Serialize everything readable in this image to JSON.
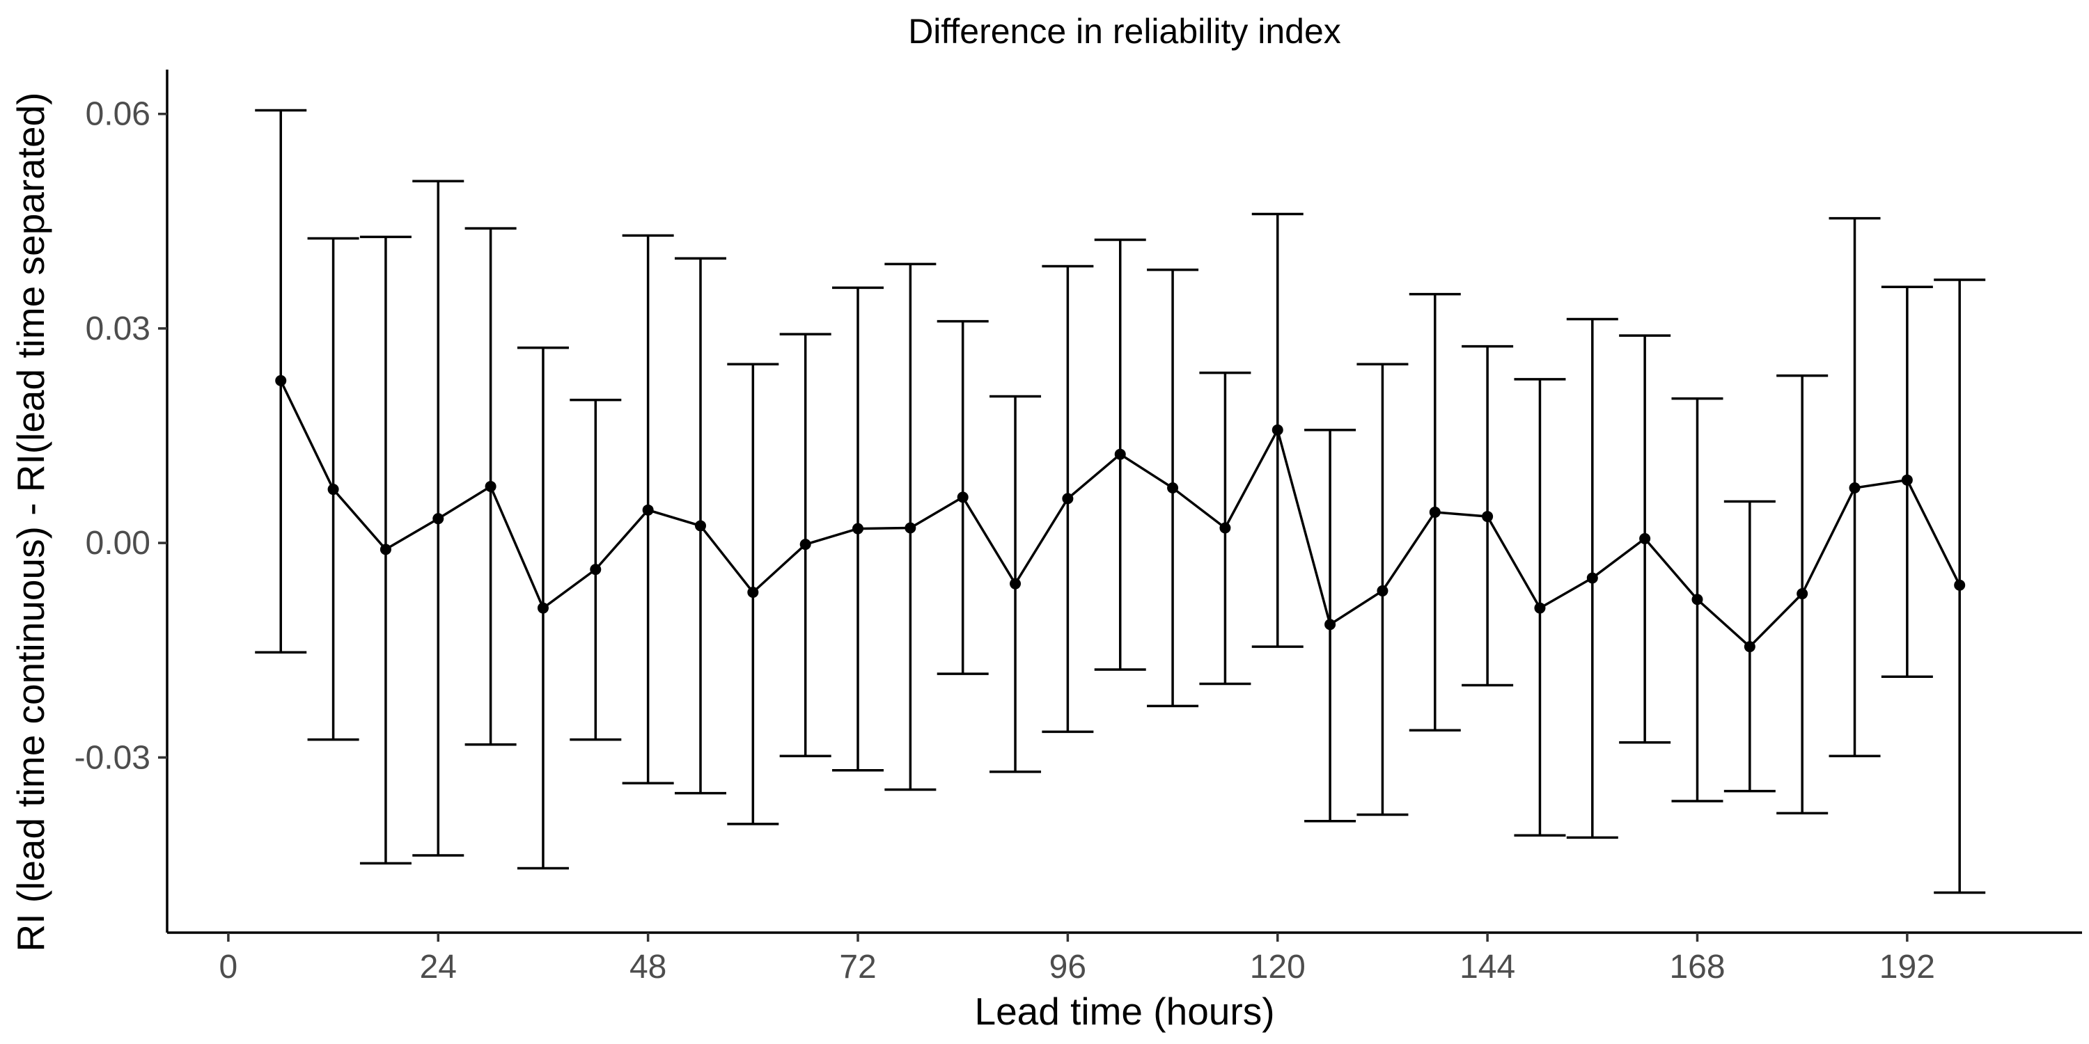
{
  "chart_data": {
    "type": "line",
    "title": "Difference in reliability index",
    "xlabel": "Lead time (hours)",
    "ylabel": "RI (lead time continuous) - RI(lead time separated)",
    "xlim": [
      -7,
      212
    ],
    "ylim": [
      -0.0545,
      0.0662
    ],
    "x_ticks": [
      0,
      24,
      48,
      72,
      96,
      120,
      144,
      168,
      192
    ],
    "x_tick_labels": [
      "0",
      "24",
      "48",
      "72",
      "96",
      "120",
      "144",
      "168",
      "192"
    ],
    "y_ticks": [
      0.06,
      0.03,
      0.0,
      -0.03
    ],
    "y_tick_labels": [
      "0.06",
      "0.03",
      "0.00",
      "-0.03"
    ],
    "grid": false,
    "legend": "none",
    "series": [
      {
        "x": [
          6,
          12,
          18,
          24,
          30,
          36,
          42,
          48,
          54,
          60,
          66,
          72,
          78,
          84,
          90,
          96,
          102,
          108,
          114,
          120,
          126,
          132,
          138,
          144,
          150,
          156,
          162,
          168,
          174,
          180,
          186,
          192,
          198
        ],
        "y": [
          0.0227,
          0.0075,
          -0.0009,
          0.0034,
          0.0079,
          -0.0091,
          -0.0037,
          0.0046,
          0.0024,
          -0.0069,
          -0.0002,
          0.002,
          0.0021,
          0.0064,
          -0.0057,
          0.0062,
          0.0124,
          0.0077,
          0.0021,
          0.0158,
          -0.0114,
          -0.0067,
          0.0043,
          0.0037,
          -0.0091,
          -0.0049,
          0.0006,
          -0.0079,
          -0.0145,
          -0.0071,
          0.0077,
          0.0088,
          -0.0059
        ],
        "y_lower": [
          -0.0153,
          -0.0275,
          -0.0448,
          -0.0437,
          -0.0282,
          -0.0455,
          -0.0275,
          -0.0336,
          -0.035,
          -0.0393,
          -0.0298,
          -0.0318,
          -0.0345,
          -0.0183,
          -0.032,
          -0.0264,
          -0.0177,
          -0.0228,
          -0.0197,
          -0.0145,
          -0.0389,
          -0.038,
          -0.0262,
          -0.0199,
          -0.0409,
          -0.0412,
          -0.0279,
          -0.0361,
          -0.0347,
          -0.0378,
          -0.0298,
          -0.0187,
          -0.0489
        ],
        "y_upper": [
          0.0605,
          0.0426,
          0.0428,
          0.0506,
          0.044,
          0.0273,
          0.02,
          0.043,
          0.0398,
          0.025,
          0.0292,
          0.0357,
          0.039,
          0.031,
          0.0205,
          0.0387,
          0.0424,
          0.0382,
          0.0238,
          0.046,
          0.0158,
          0.025,
          0.0348,
          0.0275,
          0.0229,
          0.0313,
          0.029,
          0.0202,
          0.0058,
          0.0234,
          0.0454,
          0.0358,
          0.0368
        ]
      }
    ]
  }
}
